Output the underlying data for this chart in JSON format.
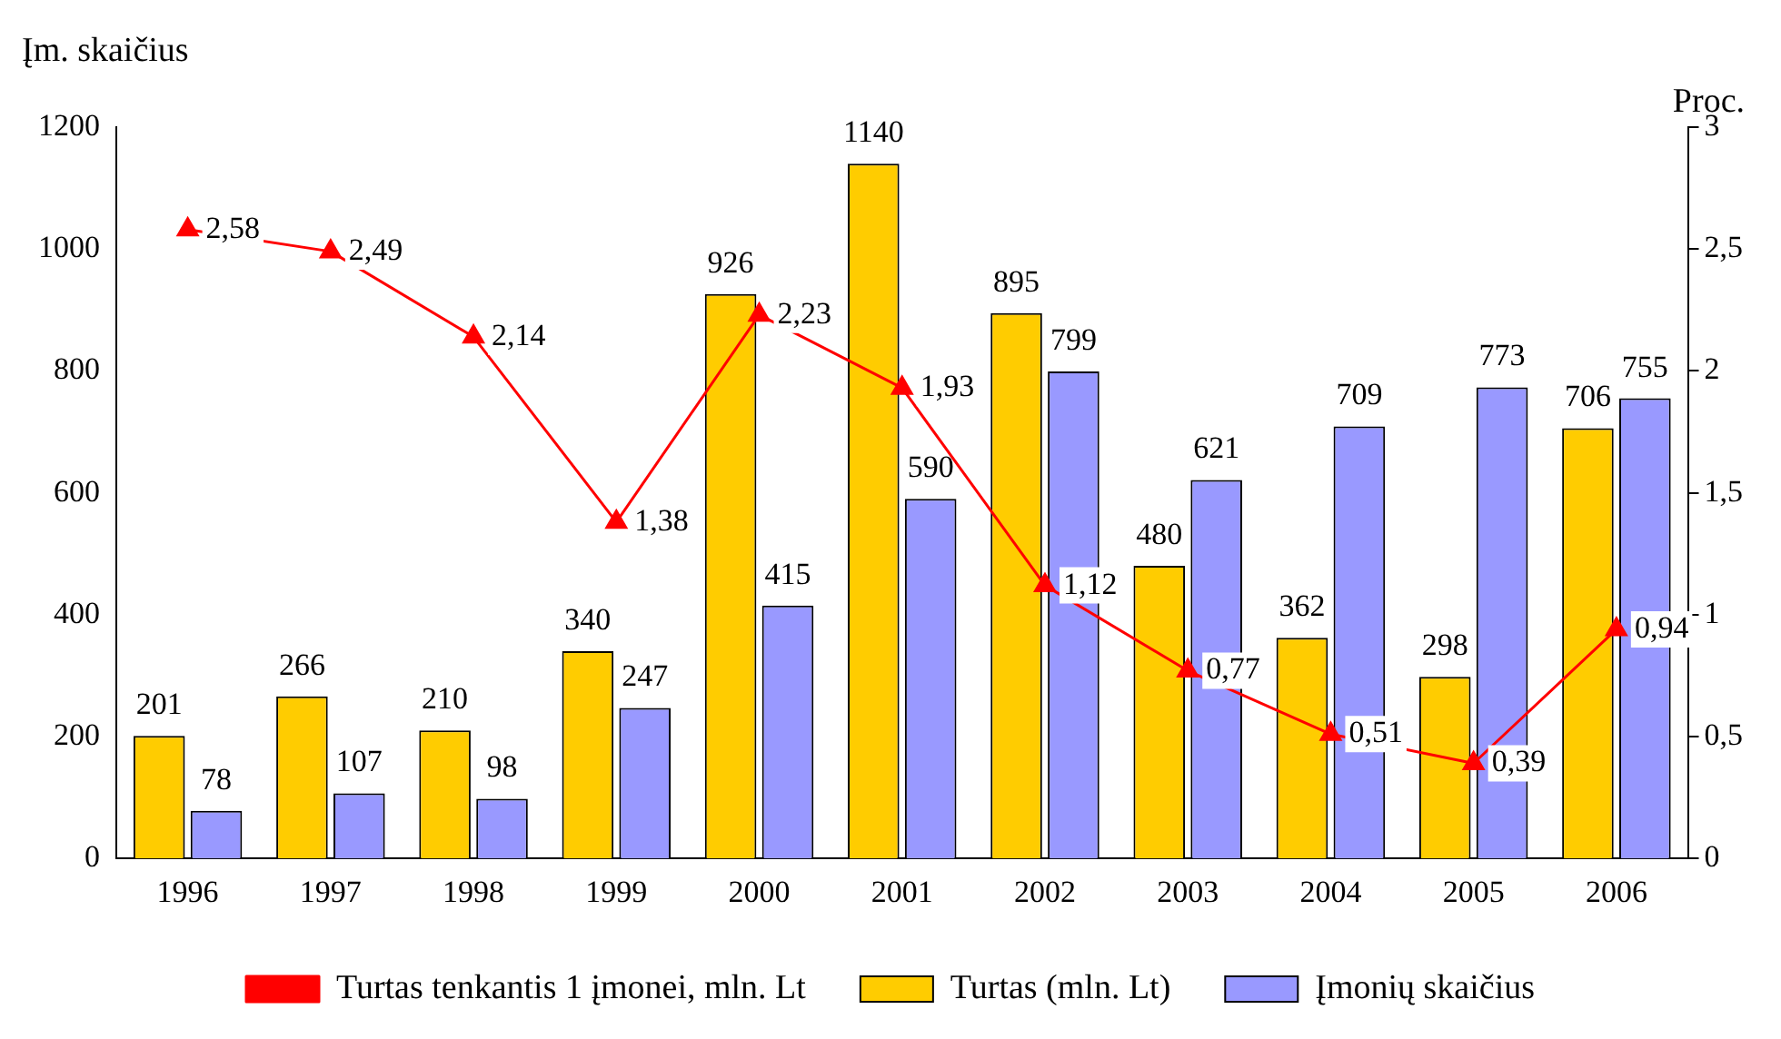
{
  "chart_data": {
    "type": "bar",
    "ylabel": "Įm. skaičius",
    "y2label": "Proc.",
    "categories": [
      "1996",
      "1997",
      "1998",
      "1999",
      "2000",
      "2001",
      "2002",
      "2003",
      "2004",
      "2005",
      "2006"
    ],
    "series": [
      {
        "name": "Turtas (mln. Lt)",
        "color": "#ffcc00",
        "values": [
          201,
          266,
          210,
          340,
          926,
          1140,
          895,
          480,
          362,
          298,
          706
        ],
        "value_labels": [
          "201",
          "266",
          "210",
          "340",
          "926",
          "1140",
          "895",
          "480",
          "362",
          "298",
          "706"
        ]
      },
      {
        "name": "Įmonių skaičius",
        "color": "#9999ff",
        "values": [
          78,
          107,
          98,
          247,
          415,
          590,
          799,
          621,
          709,
          773,
          755
        ],
        "value_labels": [
          "78",
          "107",
          "98",
          "247",
          "415",
          "590",
          "799",
          "621",
          "709",
          "773",
          "755"
        ]
      },
      {
        "name": "Turtas tenkantis 1 įmonei, mln. Lt",
        "type": "line",
        "axis": "y2",
        "color": "#ff0000",
        "marker": "triangle",
        "values": [
          2.58,
          2.49,
          2.14,
          1.38,
          2.23,
          1.93,
          1.12,
          0.77,
          0.51,
          0.39,
          0.94
        ],
        "value_labels": [
          "2,58",
          "2,49",
          "2,14",
          "1,38",
          "2,23",
          "1,93",
          "1,12",
          "0,77",
          "0,51",
          "0,39",
          "0,94"
        ]
      }
    ],
    "ylim": [
      0,
      1200
    ],
    "yticks": [
      0,
      200,
      400,
      600,
      800,
      1000,
      1200
    ],
    "y2lim": [
      0,
      3
    ],
    "y2ticks": [
      0,
      {
        "value": 0.5,
        "label": "0,5"
      },
      1,
      {
        "value": 1.5,
        "label": "1,5"
      },
      2,
      {
        "value": 2.5,
        "label": "2,5"
      },
      3
    ],
    "grid": false,
    "legend": "bottom"
  }
}
